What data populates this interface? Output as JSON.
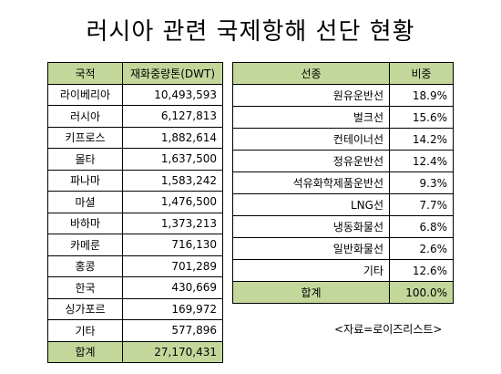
{
  "title": "러시아 관련 국제항해 선단 현황",
  "left_table": {
    "headers": [
      "국적",
      "재화중량톤(DWT)"
    ],
    "rows": [
      [
        "라이베리아",
        "10,493,593"
      ],
      [
        "러시아",
        "6,127,813"
      ],
      [
        "키프로스",
        "1,882,614"
      ],
      [
        "몰타",
        "1,637,500"
      ],
      [
        "파나마",
        "1,583,242"
      ],
      [
        "마셜",
        "1,476,500"
      ],
      [
        "바하마",
        "1,373,213"
      ],
      [
        "카메룬",
        "716,130"
      ],
      [
        "홍콩",
        "701,289"
      ],
      [
        "한국",
        "430,669"
      ],
      [
        "싱가포르",
        "169,972"
      ],
      [
        "기타",
        "577,896"
      ]
    ],
    "total": [
      "합계",
      "27,170,431"
    ]
  },
  "right_table": {
    "headers": [
      "선종",
      "비중"
    ],
    "rows": [
      [
        "원유운반선",
        "18.9%"
      ],
      [
        "벌크선",
        "15.6%"
      ],
      [
        "컨테이너선",
        "14.2%"
      ],
      [
        "정유운반선",
        "12.4%"
      ],
      [
        "석유화학제품운반선",
        "9.3%"
      ],
      [
        "LNG선",
        "7.7%"
      ],
      [
        "냉동화물선",
        "6.8%"
      ],
      [
        "일반화물선",
        "2.6%"
      ],
      [
        "기타",
        "12.6%"
      ]
    ],
    "total": [
      "합계",
      "100.0%"
    ]
  },
  "source": "<자료=로이즈리스트>"
}
